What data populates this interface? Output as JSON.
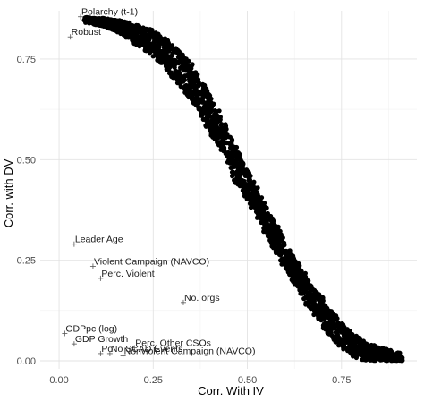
{
  "chart_data": {
    "type": "scatter",
    "xlabel": "Corr. With IV",
    "ylabel": "Corr. with DV",
    "xlim": [
      -0.05,
      0.95
    ],
    "ylim": [
      -0.02,
      0.87
    ],
    "x_ticks": [
      {
        "value": 0.0,
        "label": "0.00"
      },
      {
        "value": 0.25,
        "label": "0.25"
      },
      {
        "value": 0.5,
        "label": "0.50"
      },
      {
        "value": 0.75,
        "label": "0.75"
      }
    ],
    "y_ticks": [
      {
        "value": 0.0,
        "label": "0.00"
      },
      {
        "value": 0.25,
        "label": "0.25"
      },
      {
        "value": 0.5,
        "label": "0.50"
      },
      {
        "value": 0.75,
        "label": "0.75"
      }
    ],
    "grid": true,
    "colors": {
      "points": "#000000",
      "grid": "#e3e3e3",
      "labels": "#1a1a1a"
    },
    "series_points": {
      "curve": [
        [
          0.07,
          0.85
        ],
        [
          0.12,
          0.845
        ],
        [
          0.17,
          0.835
        ],
        [
          0.22,
          0.815
        ],
        [
          0.27,
          0.79
        ],
        [
          0.31,
          0.755
        ],
        [
          0.35,
          0.71
        ],
        [
          0.39,
          0.65
        ],
        [
          0.42,
          0.6
        ],
        [
          0.46,
          0.52
        ],
        [
          0.5,
          0.45
        ],
        [
          0.54,
          0.38
        ],
        [
          0.58,
          0.31
        ],
        [
          0.62,
          0.245
        ],
        [
          0.66,
          0.185
        ],
        [
          0.7,
          0.13
        ],
        [
          0.74,
          0.085
        ],
        [
          0.78,
          0.05
        ],
        [
          0.82,
          0.03
        ],
        [
          0.86,
          0.02
        ],
        [
          0.91,
          0.01
        ]
      ],
      "band_width_y": [
        0.012,
        0.02,
        0.035,
        0.055,
        0.07,
        0.08,
        0.09,
        0.09,
        0.085,
        0.08,
        0.075,
        0.07,
        0.065,
        0.065,
        0.065,
        0.065,
        0.06,
        0.055,
        0.045,
        0.035,
        0.025
      ],
      "count": 2200
    },
    "labeled_points": [
      {
        "x": 0.057,
        "y": 0.855,
        "label": "Polarchy (t-1)"
      },
      {
        "x": 0.03,
        "y": 0.805,
        "label": "Robust"
      },
      {
        "x": 0.04,
        "y": 0.29,
        "label": "Leader Age"
      },
      {
        "x": 0.09,
        "y": 0.235,
        "label": "Violent Campaign (NAVCO)"
      },
      {
        "x": 0.11,
        "y": 0.205,
        "label": "Perc. Violent"
      },
      {
        "x": 0.33,
        "y": 0.145,
        "label": "No. orgs"
      },
      {
        "x": 0.015,
        "y": 0.068,
        "label": "GDPpc (log)"
      },
      {
        "x": 0.04,
        "y": 0.042,
        "label": "GDP Growth"
      },
      {
        "x": 0.2,
        "y": 0.032,
        "label": "Perc. Other CSOs"
      },
      {
        "x": 0.11,
        "y": 0.018,
        "label": "Pol"
      },
      {
        "x": 0.135,
        "y": 0.018,
        "label": "No SCAD Events"
      },
      {
        "x": 0.17,
        "y": 0.012,
        "label": "Nonviolent Campaign (NAVCO)"
      }
    ]
  }
}
